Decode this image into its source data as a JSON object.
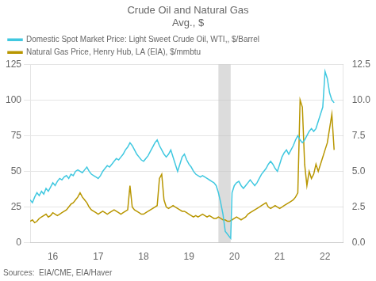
{
  "chart_data": {
    "type": "line",
    "title": "Crude Oil and Natural Gas",
    "subtitle": "Avg., $",
    "annotations": [
      {
        "text": "Sources:  EIA/CME, EIA/Haver"
      }
    ],
    "xlim": [
      15.5,
      22.4
    ],
    "xticks": [
      16,
      17,
      18,
      19,
      20,
      21,
      22
    ],
    "ylim": [
      0,
      125
    ],
    "yticks": [
      0,
      25,
      50,
      75,
      100,
      125
    ],
    "y2lim": [
      0,
      12.5
    ],
    "y2ticks": [
      {
        "value": 0.0,
        "label": "0.0"
      },
      2.5,
      {
        "value": 5.0,
        "label": "5.0"
      },
      7.5,
      {
        "value": 10.0,
        "label": "10.0"
      },
      12.5
    ],
    "grid": "y",
    "legend": "upper left",
    "shade": {
      "xmin": 19.65,
      "xmax": 19.92,
      "color": "#C0C0C0"
    },
    "series": [
      {
        "name": "Domestic Spot Market Price: Light Sweet Crude Oil, WTI,, $/Barrel",
        "color": "#40C8E0",
        "axis": "y",
        "x": [
          15.5,
          15.55,
          15.6,
          15.65,
          15.7,
          15.75,
          15.8,
          15.85,
          15.9,
          15.95,
          16.0,
          16.05,
          16.1,
          16.15,
          16.2,
          16.25,
          16.3,
          16.35,
          16.4,
          16.45,
          16.5,
          16.55,
          16.6,
          16.65,
          16.7,
          16.75,
          16.8,
          16.85,
          16.9,
          16.95,
          17.0,
          17.05,
          17.1,
          17.15,
          17.2,
          17.25,
          17.3,
          17.35,
          17.4,
          17.45,
          17.5,
          17.55,
          17.6,
          17.65,
          17.7,
          17.75,
          17.8,
          17.85,
          17.9,
          17.95,
          18.0,
          18.05,
          18.1,
          18.15,
          18.2,
          18.25,
          18.3,
          18.35,
          18.4,
          18.45,
          18.5,
          18.55,
          18.6,
          18.65,
          18.7,
          18.75,
          18.8,
          18.85,
          18.9,
          18.95,
          19.0,
          19.05,
          19.1,
          19.15,
          19.2,
          19.25,
          19.3,
          19.35,
          19.4,
          19.45,
          19.5,
          19.55,
          19.6,
          19.65,
          19.7,
          19.75,
          19.8,
          19.92,
          19.95,
          20.0,
          20.05,
          20.1,
          20.15,
          20.2,
          20.25,
          20.3,
          20.35,
          20.4,
          20.45,
          20.5,
          20.55,
          20.6,
          20.65,
          20.7,
          20.75,
          20.8,
          20.85,
          20.9,
          20.95,
          21.0,
          21.05,
          21.1,
          21.15,
          21.2,
          21.25,
          21.3,
          21.35,
          21.4,
          21.45,
          21.5,
          21.55,
          21.6,
          21.65,
          21.7,
          21.75,
          21.8,
          21.85,
          21.9,
          21.95,
          22.0,
          22.05,
          22.1,
          22.15,
          22.2
        ],
        "values": [
          30,
          28,
          32,
          35,
          33,
          36,
          34,
          38,
          36,
          39,
          42,
          40,
          43,
          45,
          44,
          46,
          47,
          45,
          48,
          47,
          50,
          51,
          50,
          49,
          51,
          53,
          50,
          48,
          47,
          46,
          45,
          47,
          50,
          52,
          54,
          53,
          55,
          57,
          59,
          58,
          60,
          62,
          65,
          67,
          70,
          68,
          65,
          62,
          60,
          58,
          57,
          59,
          61,
          64,
          67,
          70,
          72,
          68,
          65,
          62,
          60,
          62,
          65,
          60,
          55,
          50,
          55,
          60,
          62,
          58,
          55,
          53,
          50,
          48,
          47,
          46,
          47,
          46,
          45,
          44,
          43,
          42,
          40,
          35,
          28,
          20,
          8,
          3,
          35,
          40,
          42,
          43,
          40,
          38,
          40,
          42,
          44,
          42,
          40,
          42,
          45,
          48,
          50,
          52,
          55,
          57,
          55,
          52,
          50,
          55,
          60,
          63,
          65,
          62,
          65,
          68,
          72,
          75,
          72,
          70,
          72,
          75,
          78,
          80,
          78,
          80,
          85,
          90,
          95,
          120,
          115,
          105,
          100,
          98
        ]
      },
      {
        "name": "Natural Gas Price, Henry Hub, LA (EIA), $/mmbtu",
        "color": "#B89600",
        "axis": "y2",
        "x": [
          15.5,
          15.55,
          15.6,
          15.65,
          15.7,
          15.75,
          15.8,
          15.85,
          15.9,
          15.95,
          16.0,
          16.05,
          16.1,
          16.15,
          16.2,
          16.25,
          16.3,
          16.35,
          16.4,
          16.45,
          16.5,
          16.55,
          16.6,
          16.65,
          16.7,
          16.75,
          16.8,
          16.85,
          16.9,
          16.95,
          17.0,
          17.05,
          17.1,
          17.15,
          17.2,
          17.25,
          17.3,
          17.35,
          17.4,
          17.45,
          17.5,
          17.55,
          17.6,
          17.65,
          17.7,
          17.75,
          17.8,
          17.85,
          17.9,
          17.95,
          18.0,
          18.05,
          18.1,
          18.15,
          18.2,
          18.25,
          18.3,
          18.35,
          18.4,
          18.45,
          18.5,
          18.55,
          18.6,
          18.65,
          18.7,
          18.75,
          18.8,
          18.85,
          18.9,
          18.95,
          19.0,
          19.05,
          19.1,
          19.15,
          19.2,
          19.25,
          19.3,
          19.35,
          19.4,
          19.45,
          19.5,
          19.55,
          19.6,
          19.65,
          19.7,
          19.75,
          19.8,
          19.85,
          19.9,
          19.95,
          20.0,
          20.05,
          20.1,
          20.15,
          20.2,
          20.25,
          20.3,
          20.35,
          20.4,
          20.45,
          20.5,
          20.55,
          20.6,
          20.65,
          20.7,
          20.75,
          20.8,
          20.85,
          20.9,
          20.95,
          21.0,
          21.05,
          21.1,
          21.15,
          21.2,
          21.25,
          21.3,
          21.35,
          21.4,
          21.45,
          21.5,
          21.55,
          21.6,
          21.65,
          21.7,
          21.75,
          21.8,
          21.85,
          21.9,
          21.95,
          22.0,
          22.05,
          22.1,
          22.15,
          22.2
        ],
        "values": [
          1.5,
          1.6,
          1.4,
          1.5,
          1.7,
          1.8,
          1.9,
          2.0,
          1.8,
          1.9,
          2.1,
          2.0,
          1.9,
          2.0,
          2.1,
          2.2,
          2.3,
          2.5,
          2.7,
          2.8,
          3.0,
          3.2,
          3.5,
          3.2,
          3.0,
          2.8,
          2.5,
          2.3,
          2.2,
          2.1,
          2.0,
          2.1,
          2.2,
          2.1,
          2.0,
          2.1,
          2.2,
          2.3,
          2.2,
          2.1,
          2.0,
          2.1,
          2.2,
          2.3,
          4.0,
          2.5,
          2.3,
          2.2,
          2.1,
          2.0,
          2.0,
          2.1,
          2.2,
          2.3,
          2.4,
          2.5,
          2.6,
          4.5,
          4.8,
          3.0,
          2.5,
          2.4,
          2.5,
          2.6,
          2.5,
          2.4,
          2.3,
          2.2,
          2.2,
          2.1,
          2.0,
          1.9,
          1.8,
          1.9,
          1.8,
          1.9,
          2.0,
          1.9,
          1.8,
          1.9,
          1.8,
          1.7,
          1.7,
          1.8,
          1.7,
          1.6,
          1.6,
          1.5,
          1.5,
          1.6,
          1.7,
          1.8,
          1.7,
          1.6,
          1.7,
          1.8,
          2.0,
          2.1,
          2.2,
          2.3,
          2.4,
          2.5,
          2.6,
          2.7,
          2.8,
          2.5,
          2.4,
          2.5,
          2.6,
          2.5,
          2.4,
          2.5,
          2.6,
          2.7,
          2.8,
          2.9,
          3.0,
          3.2,
          3.5,
          10.0,
          9.5,
          5.5,
          4.0,
          5.0,
          4.5,
          4.8,
          5.5,
          5.0,
          5.5,
          6.0,
          6.5,
          7.0,
          8.0,
          9.0,
          6.5
        ]
      }
    ]
  }
}
